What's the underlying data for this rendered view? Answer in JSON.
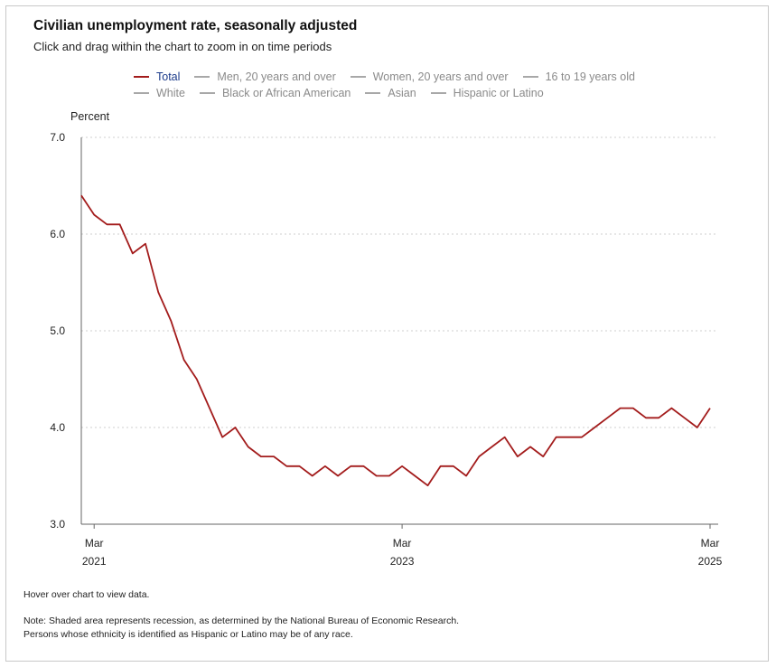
{
  "title": "Civilian unemployment rate, seasonally adjusted",
  "subtitle": "Click and drag within the chart to zoom in on time periods",
  "legend": {
    "row1": [
      {
        "label": "Total",
        "active": true
      },
      {
        "label": "Men, 20 years and over",
        "active": false
      },
      {
        "label": "Women, 20 years and over",
        "active": false
      },
      {
        "label": "16 to 19 years old",
        "active": false
      }
    ],
    "row2": [
      {
        "label": "White",
        "active": false
      },
      {
        "label": "Black or African American",
        "active": false
      },
      {
        "label": "Asian",
        "active": false
      },
      {
        "label": "Hispanic or Latino",
        "active": false
      }
    ]
  },
  "colors": {
    "total_series": "#a31c1c",
    "inactive_legend": "#a8a8a8",
    "grid": "#cfcfcf"
  },
  "notes": {
    "hover": "Hover over chart to view data.",
    "note1": "Note: Shaded area represents recession, as determined by the National Bureau of Economic Research.",
    "note2": "Persons whose ethnicity is identified as Hispanic or Latino may be of any race."
  },
  "chart_data": {
    "type": "line",
    "title": "Civilian unemployment rate, seasonally adjusted",
    "ylabel": "Percent",
    "xlabel": "",
    "ylim": [
      3.0,
      7.0
    ],
    "yticks": [
      "3.0",
      "4.0",
      "5.0",
      "6.0",
      "7.0"
    ],
    "x_range": [
      "2021-02",
      "2025-03"
    ],
    "xticks": [
      {
        "month": "Mar",
        "year": "2021",
        "date": "2021-03"
      },
      {
        "month": "Mar",
        "year": "2023",
        "date": "2023-03"
      },
      {
        "month": "Mar",
        "year": "2025",
        "date": "2025-03"
      }
    ],
    "grid": true,
    "legend_position": "top",
    "series": [
      {
        "name": "Total",
        "x": [
          "2021-02",
          "2021-03",
          "2021-04",
          "2021-05",
          "2021-06",
          "2021-07",
          "2021-08",
          "2021-09",
          "2021-10",
          "2021-11",
          "2021-12",
          "2022-01",
          "2022-02",
          "2022-03",
          "2022-04",
          "2022-05",
          "2022-06",
          "2022-07",
          "2022-08",
          "2022-09",
          "2022-10",
          "2022-11",
          "2022-12",
          "2023-01",
          "2023-02",
          "2023-03",
          "2023-04",
          "2023-05",
          "2023-06",
          "2023-07",
          "2023-08",
          "2023-09",
          "2023-10",
          "2023-11",
          "2023-12",
          "2024-01",
          "2024-02",
          "2024-03",
          "2024-04",
          "2024-05",
          "2024-06",
          "2024-07",
          "2024-08",
          "2024-09",
          "2024-10",
          "2024-11",
          "2024-12",
          "2025-01",
          "2025-02",
          "2025-03"
        ],
        "values": [
          6.4,
          6.2,
          6.1,
          6.1,
          5.8,
          5.9,
          5.4,
          5.1,
          4.7,
          4.5,
          4.2,
          3.9,
          4.0,
          3.8,
          3.7,
          3.7,
          3.6,
          3.6,
          3.5,
          3.6,
          3.5,
          3.6,
          3.6,
          3.5,
          3.5,
          3.6,
          3.5,
          3.4,
          3.6,
          3.6,
          3.5,
          3.7,
          3.8,
          3.9,
          3.7,
          3.8,
          3.7,
          3.9,
          3.9,
          3.9,
          4.0,
          4.1,
          4.2,
          4.2,
          4.1,
          4.1,
          4.2,
          4.1,
          4.0,
          4.2
        ]
      }
    ]
  }
}
